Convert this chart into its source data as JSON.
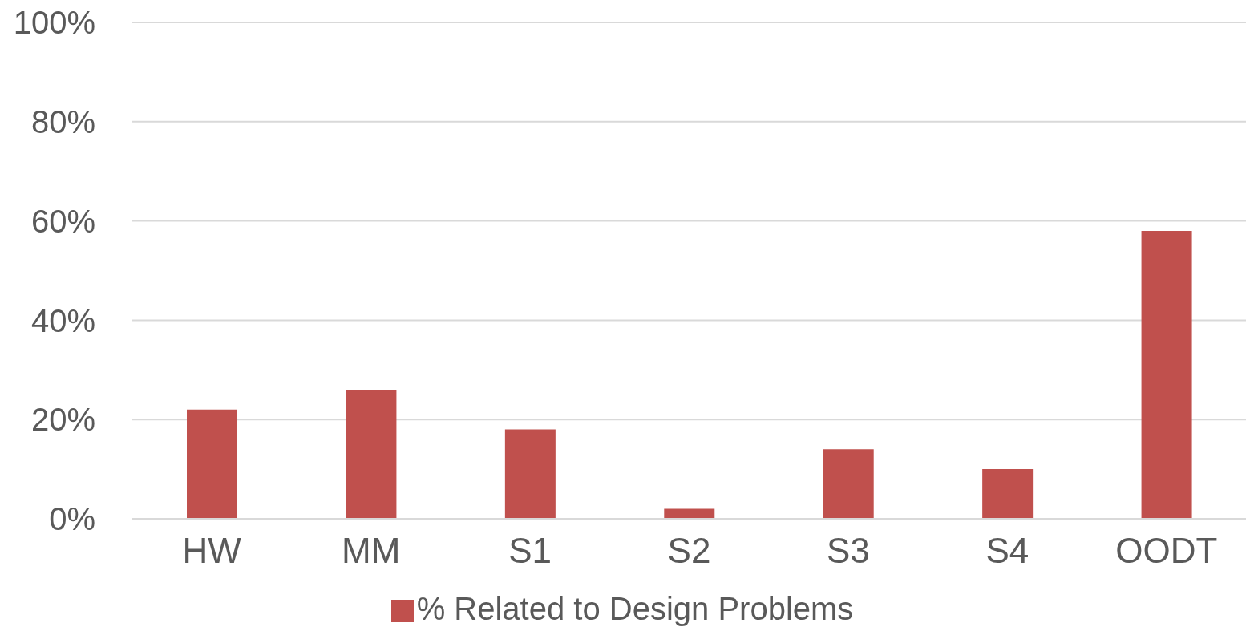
{
  "chart_data": {
    "type": "bar",
    "categories": [
      "HW",
      "MM",
      "S1",
      "S2",
      "S3",
      "S4",
      "OODT"
    ],
    "series": [
      {
        "name": "% Related to Design Problems",
        "color": "#c0504d",
        "values": [
          22,
          26,
          18,
          2,
          14,
          10,
          58
        ]
      }
    ],
    "ylim": [
      0,
      100
    ],
    "yticks": [
      {
        "value": 0,
        "label": "0%"
      },
      {
        "value": 20,
        "label": "20%"
      },
      {
        "value": 40,
        "label": "40%"
      },
      {
        "value": 60,
        "label": "60%"
      },
      {
        "value": 80,
        "label": "80%"
      },
      {
        "value": 100,
        "label": "100%"
      }
    ],
    "grid": "y",
    "legend": "bottom"
  }
}
